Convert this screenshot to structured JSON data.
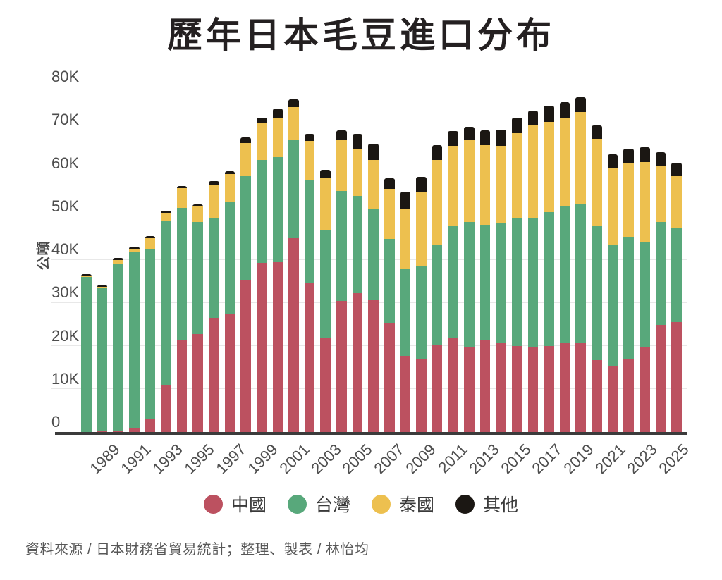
{
  "title": "歷年日本毛豆進口分布",
  "y_axis": {
    "unit_label": "公噸",
    "ticks": [
      {
        "label": "0",
        "value": 0
      },
      {
        "label": "10K",
        "value": 10
      },
      {
        "label": "20K",
        "value": 20
      },
      {
        "label": "30K",
        "value": 30
      },
      {
        "label": "40K",
        "value": 40
      },
      {
        "label": "50K",
        "value": 50
      },
      {
        "label": "60K",
        "value": 60
      },
      {
        "label": "70K",
        "value": 70
      },
      {
        "label": "80K",
        "value": 80
      }
    ]
  },
  "x_axis": {
    "tick_years": [
      "1989",
      "1991",
      "1993",
      "1995",
      "1997",
      "1999",
      "2001",
      "2003",
      "2005",
      "2007",
      "2009",
      "2011",
      "2013",
      "2015",
      "2017",
      "2019",
      "2021",
      "2023",
      "2025"
    ]
  },
  "legend": {
    "items": [
      {
        "id": "china",
        "label": "中國",
        "color": "#bc5160"
      },
      {
        "id": "taiwan",
        "label": "台灣",
        "color": "#58a87b"
      },
      {
        "id": "thailand",
        "label": "泰國",
        "color": "#edc04f"
      },
      {
        "id": "other",
        "label": "其他",
        "color": "#1b1713"
      }
    ]
  },
  "footer": {
    "source": "資料來源 / 日本財務省貿易統計；整理、製表 / 林怡均"
  },
  "colors": {
    "china": "#bc5160",
    "taiwan": "#58a87b",
    "thailand": "#edc04f",
    "other": "#1b1713",
    "gridline": "#e8e8e8",
    "axis_line": "#3b3b3b",
    "tick_text": "#4d4d4d",
    "title_text": "#242021"
  },
  "chart_data": {
    "type": "bar",
    "stacked": true,
    "title": "歷年日本毛豆進口分布",
    "xlabel": "",
    "ylabel": "公噸",
    "unit_note": "values in thousands of metric tons (公噸)",
    "ylim": [
      0,
      80
    ],
    "grid": true,
    "legend_position": "bottom",
    "categories": [
      1988,
      1989,
      1990,
      1991,
      1992,
      1993,
      1994,
      1995,
      1996,
      1997,
      1998,
      1999,
      2000,
      2001,
      2002,
      2003,
      2004,
      2005,
      2006,
      2007,
      2008,
      2009,
      2010,
      2011,
      2012,
      2013,
      2014,
      2015,
      2016,
      2017,
      2018,
      2019,
      2020,
      2021,
      2022,
      2023,
      2024,
      2025
    ],
    "series": [
      {
        "name": "中國",
        "color": "#bc5160",
        "values": [
          0.0,
          0.2,
          0.4,
          0.9,
          3.1,
          10.9,
          21.3,
          22.7,
          26.4,
          27.2,
          35.1,
          39.2,
          39.3,
          44.9,
          34.5,
          21.8,
          30.3,
          32.1,
          30.7,
          25.2,
          17.7,
          16.9,
          20.2,
          21.9,
          19.8,
          21.3,
          20.8,
          19.9,
          19.8,
          20.0,
          20.5,
          20.8,
          16.7,
          15.3,
          16.9,
          19.6,
          24.8,
          25.5
        ]
      },
      {
        "name": "台灣",
        "color": "#58a87b",
        "values": [
          36.0,
          33.3,
          38.4,
          40.7,
          39.4,
          38.0,
          30.6,
          25.9,
          23.3,
          26.0,
          24.2,
          23.9,
          24.4,
          22.8,
          23.8,
          24.9,
          25.6,
          22.6,
          20.9,
          19.6,
          20.2,
          21.5,
          23.0,
          26.0,
          28.9,
          26.7,
          27.5,
          29.6,
          29.6,
          30.9,
          31.7,
          31.9,
          31.0,
          27.9,
          28.2,
          24.5,
          23.9,
          21.9
        ]
      },
      {
        "name": "泰國",
        "color": "#edc04f",
        "values": [
          0.1,
          0.1,
          1.0,
          0.9,
          2.4,
          1.8,
          4.6,
          3.7,
          7.6,
          6.5,
          7.7,
          8.4,
          9.1,
          7.6,
          9.1,
          12.1,
          11.8,
          10.8,
          11.4,
          11.5,
          13.8,
          17.3,
          19.8,
          18.4,
          19.0,
          18.5,
          18.0,
          19.8,
          21.6,
          20.9,
          20.6,
          21.4,
          20.2,
          17.9,
          17.2,
          18.4,
          12.8,
          11.8
        ]
      },
      {
        "name": "其他",
        "color": "#1b1713",
        "values": [
          0.5,
          0.5,
          0.5,
          0.5,
          0.5,
          0.5,
          0.5,
          0.4,
          0.8,
          0.7,
          1.2,
          1.4,
          2.2,
          1.8,
          1.7,
          2.0,
          2.2,
          3.6,
          3.8,
          2.5,
          3.9,
          3.4,
          3.5,
          3.5,
          3.0,
          3.4,
          3.7,
          3.5,
          3.5,
          3.8,
          3.6,
          3.5,
          3.1,
          3.3,
          3.4,
          3.4,
          3.4,
          3.1
        ]
      }
    ]
  }
}
